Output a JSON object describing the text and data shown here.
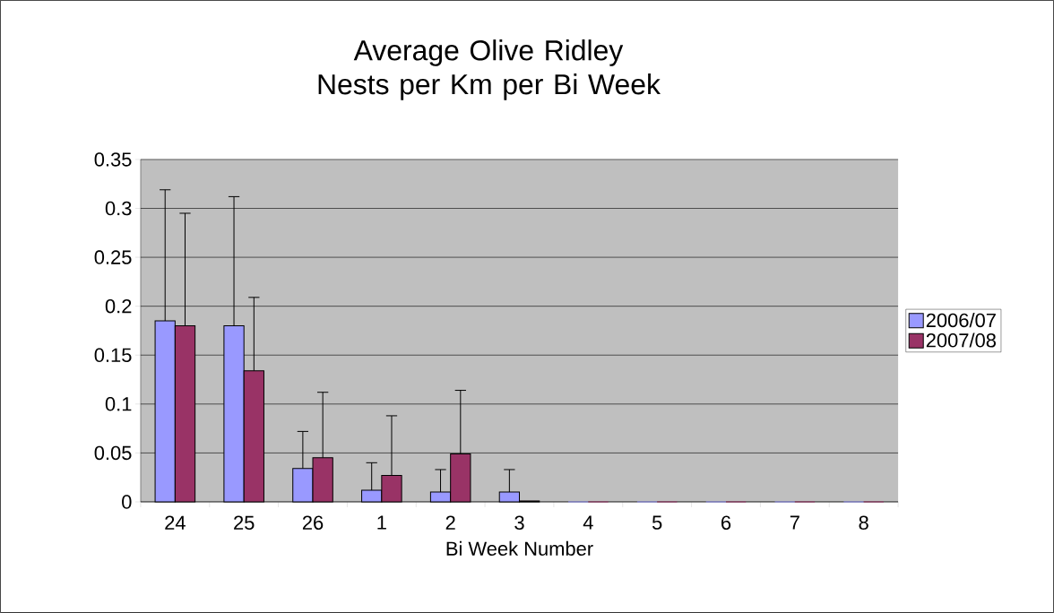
{
  "chart_data": {
    "type": "bar",
    "title": "Average Olive Ridley Nests per Km per Bi Week",
    "xlabel": "Bi Week Number",
    "categories": [
      "24",
      "25",
      "26",
      "1",
      "2",
      "3",
      "4",
      "5",
      "6",
      "7",
      "8"
    ],
    "series": [
      {
        "name": "2006/07",
        "color": "#9999ff",
        "values": [
          0.185,
          0.18,
          0.034,
          0.012,
          0.01,
          0.01,
          0,
          0,
          0,
          0,
          0
        ],
        "errors": [
          [
            0.185,
            0.319
          ],
          [
            0.18,
            0.312
          ],
          [
            0.034,
            0.072
          ],
          [
            0.012,
            0.04
          ],
          [
            0.01,
            0.033
          ],
          [
            0.01,
            0.033
          ],
          null,
          null,
          null,
          null,
          null
        ]
      },
      {
        "name": "2007/08",
        "color": "#993366",
        "values": [
          0.18,
          0.134,
          0.045,
          0.027,
          0.049,
          0.001,
          0,
          0,
          0,
          0,
          0
        ],
        "errors": [
          [
            0.18,
            0.295
          ],
          [
            0.134,
            0.209
          ],
          [
            0.045,
            0.112
          ],
          [
            0.027,
            0.088
          ],
          [
            0.049,
            0.114
          ],
          null,
          null,
          null,
          null,
          null,
          null
        ]
      }
    ],
    "ylim": [
      0,
      0.35
    ],
    "yticks": [
      0,
      0.05,
      0.1,
      0.15,
      0.2,
      0.25,
      0.3,
      0.35
    ],
    "grid": "y",
    "legend": "right"
  }
}
